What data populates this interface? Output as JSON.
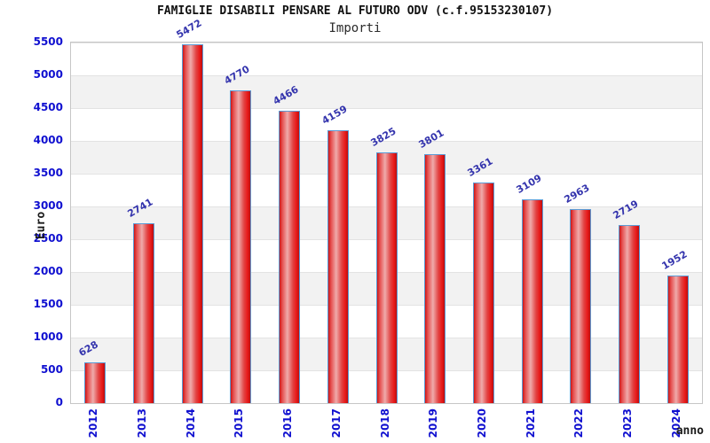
{
  "header": {
    "title": "FAMIGLIE DISABILI PENSARE AL FUTURO ODV (c.f.95153230107)",
    "subtitle": "Importi"
  },
  "axes": {
    "y_label": "Euro",
    "x_label": "anno"
  },
  "colors": {
    "tick_label": "#1010d0",
    "value_label": "#3434ad",
    "bar_border": "#5b9bd5",
    "bar_gradient": "linear-gradient(90deg, #cc1616 0%, #e65050 14%, #efabab 40%, #e24444 68%, #e81a1a 86%, #bb0f0f 100%)",
    "band_white": "#ffffff",
    "band_gray": "#f2f2f2",
    "gridline": "#e3e3e3"
  },
  "chart_data": {
    "type": "bar",
    "title": "FAMIGLIE DISABILI PENSARE AL FUTURO ODV (c.f.95153230107)",
    "subtitle": "Importi",
    "xlabel": "anno",
    "ylabel": "Euro",
    "categories": [
      "2012",
      "2013",
      "2014",
      "2015",
      "2016",
      "2017",
      "2018",
      "2019",
      "2020",
      "2021",
      "2022",
      "2023",
      "2024"
    ],
    "values": [
      628,
      2741,
      5472,
      4770,
      4466,
      4159,
      3825,
      3801,
      3361,
      3109,
      2963,
      2719,
      1952
    ],
    "ylim": [
      0,
      5500
    ],
    "ytick_step": 500,
    "ytick_labels": [
      "0",
      "500",
      "1000",
      "1500",
      "2000",
      "2500",
      "3000",
      "3500",
      "4000",
      "4500",
      "5000",
      "5500"
    ],
    "grid": "horizontal-bands",
    "legend": "none"
  }
}
